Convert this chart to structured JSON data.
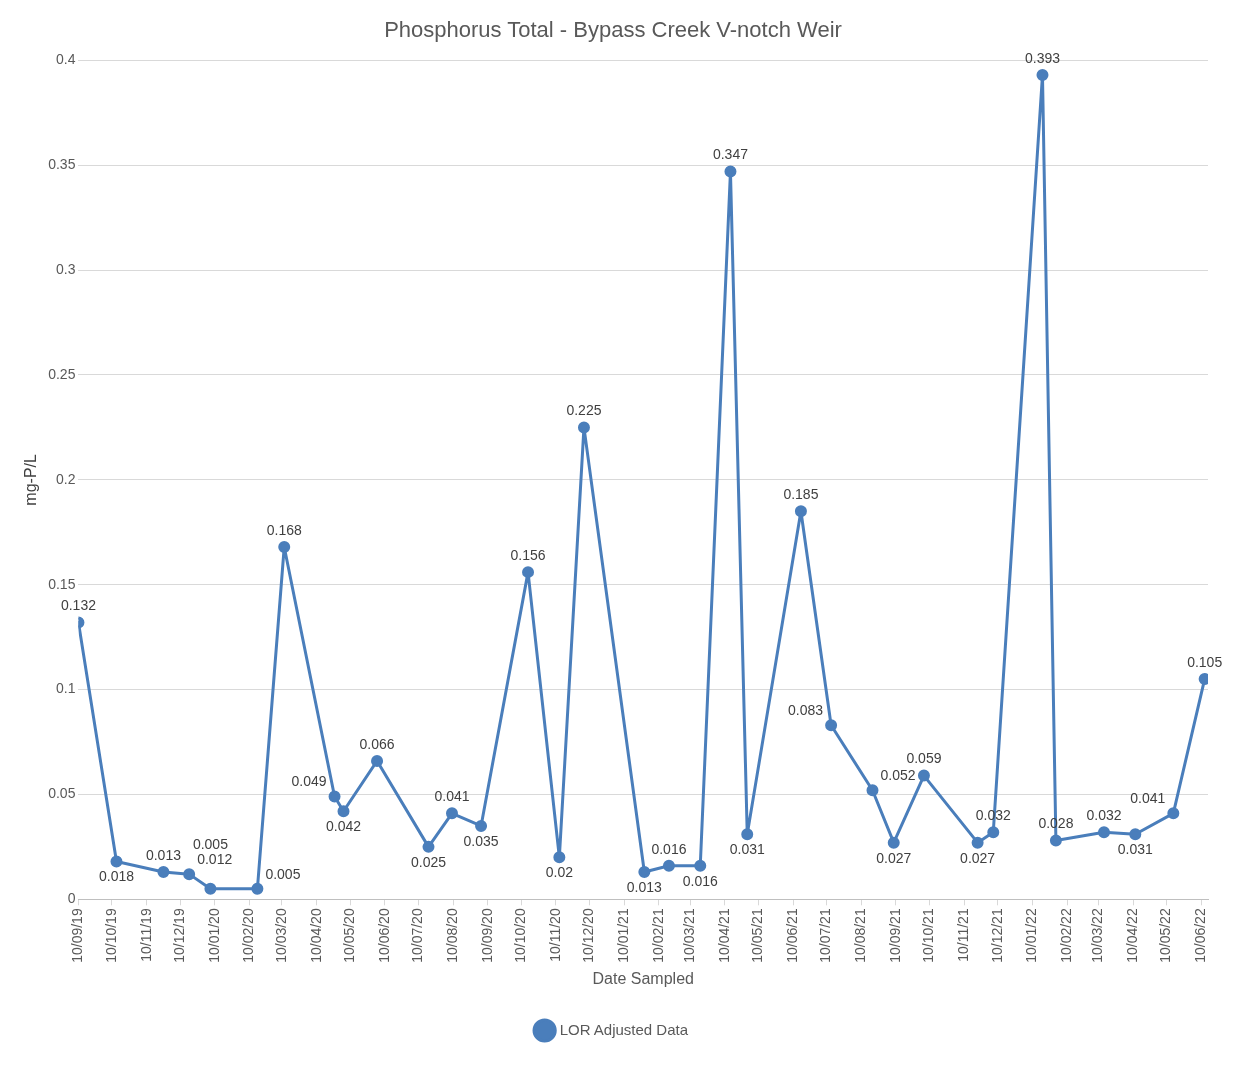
{
  "chart_data": {
    "type": "line",
    "title": "Phosphorus Total - Bypass Creek V-notch Weir",
    "xlabel": "Date Sampled",
    "ylabel": "mg-P/L",
    "x": [
      "2019-09-10",
      "2019-10-14",
      "2019-11-25",
      "2019-12-18",
      "2020-01-06",
      "2020-02-17",
      "2020-03-12",
      "2020-04-26",
      "2020-05-04",
      "2020-06-03",
      "2020-07-19",
      "2020-08-09",
      "2020-09-04",
      "2020-10-16",
      "2020-11-13",
      "2020-12-05",
      "2021-01-28",
      "2021-02-19",
      "2021-03-19",
      "2021-04-15",
      "2021-04-30",
      "2021-06-17",
      "2021-07-14",
      "2021-08-20",
      "2021-09-08",
      "2021-10-05",
      "2021-11-22",
      "2021-12-06",
      "2022-01-19",
      "2022-01-31",
      "2022-03-15",
      "2022-04-12",
      "2022-05-16",
      "2022-06-13"
    ],
    "series": [
      {
        "name": "LOR Adjusted Data",
        "color": "#4a7ebb",
        "values": [
          0.132,
          0.018,
          0.013,
          0.012,
          0.005,
          0.005,
          0.168,
          0.049,
          0.042,
          0.066,
          0.025,
          0.041,
          0.035,
          0.156,
          0.02,
          0.225,
          0.013,
          0.016,
          0.016,
          0.347,
          0.031,
          0.185,
          0.083,
          0.052,
          0.027,
          0.059,
          0.027,
          0.032,
          0.393,
          0.028,
          0.032,
          0.031,
          0.041,
          0.105
        ]
      }
    ],
    "xlim": [
      "2019-09-10",
      "2022-06-16"
    ],
    "xticks": [
      {
        "value": "2019-09-10",
        "label": "10/09/19"
      },
      {
        "value": "2019-10-10",
        "label": "10/10/19"
      },
      {
        "value": "2019-11-10",
        "label": "10/11/19"
      },
      {
        "value": "2019-12-10",
        "label": "10/12/19"
      },
      {
        "value": "2020-01-10",
        "label": "10/01/20"
      },
      {
        "value": "2020-02-10",
        "label": "10/02/20"
      },
      {
        "value": "2020-03-10",
        "label": "10/03/20"
      },
      {
        "value": "2020-04-10",
        "label": "10/04/20"
      },
      {
        "value": "2020-05-10",
        "label": "10/05/20"
      },
      {
        "value": "2020-06-10",
        "label": "10/06/20"
      },
      {
        "value": "2020-07-10",
        "label": "10/07/20"
      },
      {
        "value": "2020-08-10",
        "label": "10/08/20"
      },
      {
        "value": "2020-09-10",
        "label": "10/09/20"
      },
      {
        "value": "2020-10-10",
        "label": "10/10/20"
      },
      {
        "value": "2020-11-10",
        "label": "10/11/20"
      },
      {
        "value": "2020-12-10",
        "label": "10/12/20"
      },
      {
        "value": "2021-01-10",
        "label": "10/01/21"
      },
      {
        "value": "2021-02-10",
        "label": "10/02/21"
      },
      {
        "value": "2021-03-10",
        "label": "10/03/21"
      },
      {
        "value": "2021-04-10",
        "label": "10/04/21"
      },
      {
        "value": "2021-05-10",
        "label": "10/05/21"
      },
      {
        "value": "2021-06-10",
        "label": "10/06/21"
      },
      {
        "value": "2021-07-10",
        "label": "10/07/21"
      },
      {
        "value": "2021-08-10",
        "label": "10/08/21"
      },
      {
        "value": "2021-09-10",
        "label": "10/09/21"
      },
      {
        "value": "2021-10-10",
        "label": "10/10/21"
      },
      {
        "value": "2021-11-10",
        "label": "10/11/21"
      },
      {
        "value": "2021-12-10",
        "label": "10/12/21"
      },
      {
        "value": "2022-01-10",
        "label": "10/01/22"
      },
      {
        "value": "2022-02-10",
        "label": "10/02/22"
      },
      {
        "value": "2022-03-10",
        "label": "10/03/22"
      },
      {
        "value": "2022-04-10",
        "label": "10/04/22"
      },
      {
        "value": "2022-05-10",
        "label": "10/05/22"
      },
      {
        "value": "2022-06-10",
        "label": "10/06/22"
      }
    ],
    "ylim": [
      0,
      0.4
    ],
    "yticks": [
      0,
      0.05,
      0.1,
      0.15,
      0.2,
      0.25,
      0.3,
      0.35,
      0.4
    ],
    "grid": "y",
    "legend": "bottom",
    "marker": "circle",
    "line_style": "solid",
    "data_labels": true
  }
}
